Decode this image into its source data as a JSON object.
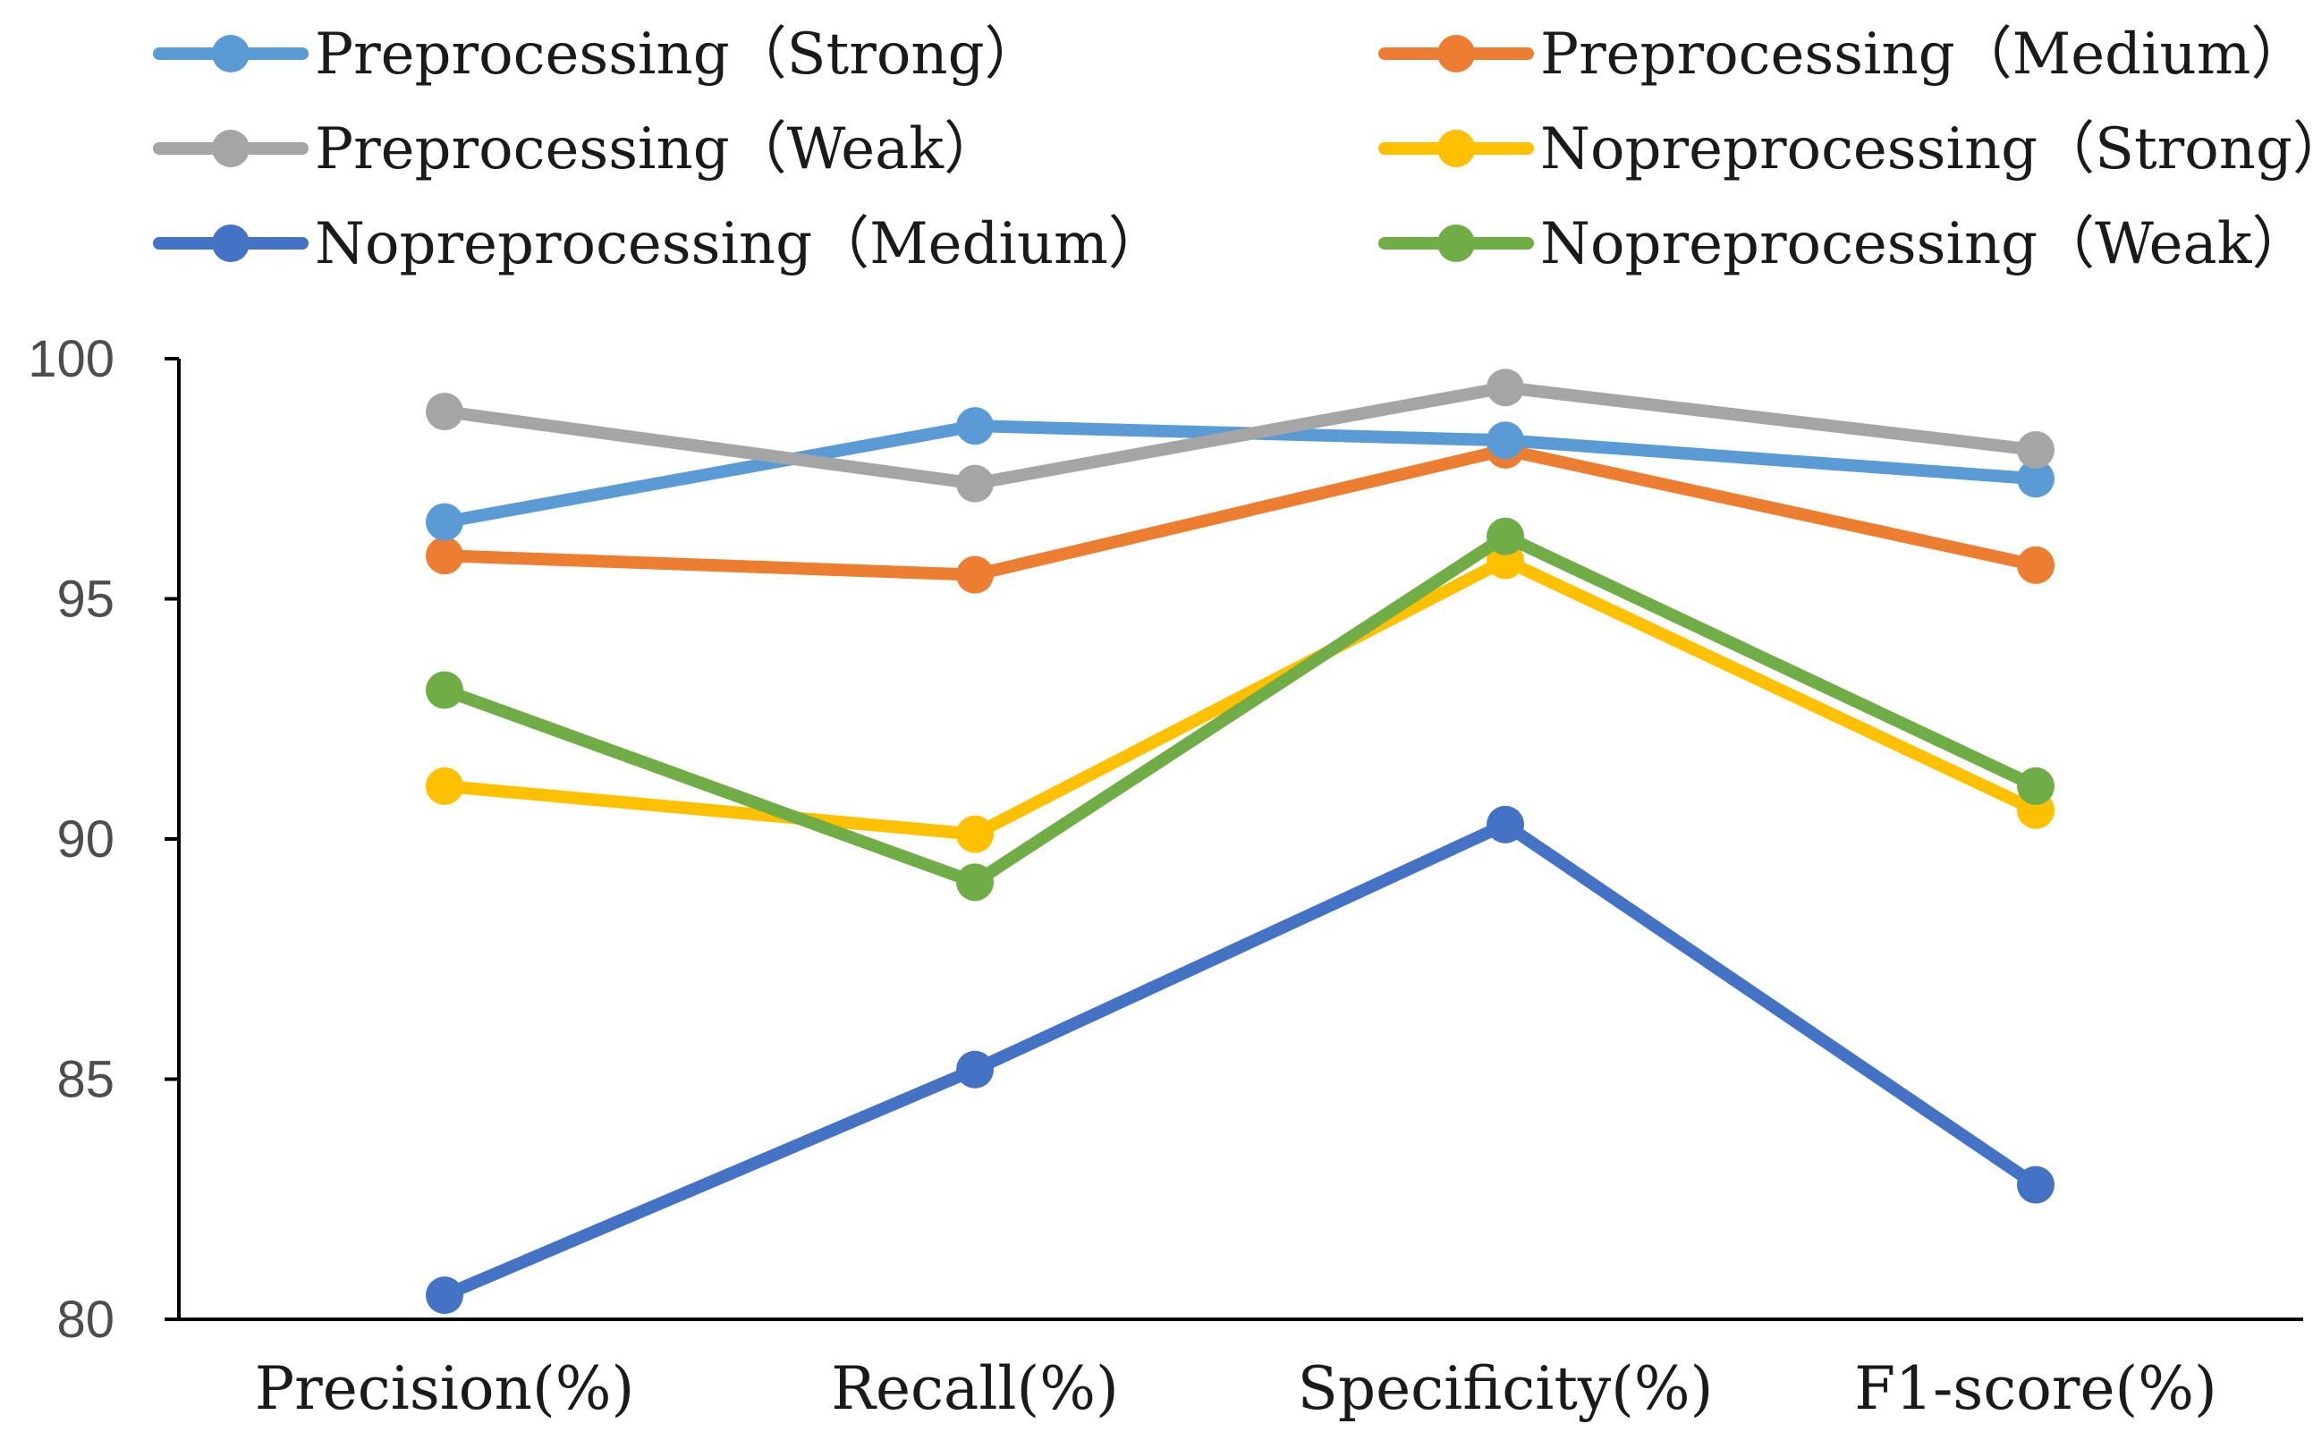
{
  "chart_data": {
    "type": "line",
    "title": "",
    "xlabel": "",
    "ylabel": "",
    "ylim": [
      80,
      100
    ],
    "yticks": [
      80,
      85,
      90,
      95,
      100
    ],
    "grid": false,
    "legend_position": "top",
    "categories": [
      "Precision(%)",
      "Recall(%)",
      "Specificity(%)",
      "F1-score(%)"
    ],
    "series": [
      {
        "name": "Preprocessing（Strong）",
        "color": "#5B9BD5",
        "values": [
          96.6,
          98.6,
          98.3,
          97.5
        ]
      },
      {
        "name": "Preprocessing（Medium）",
        "color": "#ED7D31",
        "values": [
          95.9,
          95.5,
          98.1,
          95.7
        ]
      },
      {
        "name": "Preprocessing（Weak）",
        "color": "#A5A5A5",
        "values": [
          98.9,
          97.4,
          99.4,
          98.1
        ]
      },
      {
        "name": "Nopreprocessing（Strong）",
        "color": "#FFC000",
        "values": [
          91.1,
          90.1,
          95.8,
          90.6
        ]
      },
      {
        "name": "Nopreprocessing（Medium）",
        "color": "#4472C4",
        "values": [
          80.5,
          85.2,
          90.3,
          82.8
        ]
      },
      {
        "name": "Nopreprocessing（Weak）",
        "color": "#70AD47",
        "values": [
          93.1,
          89.1,
          96.3,
          91.1
        ]
      }
    ]
  }
}
